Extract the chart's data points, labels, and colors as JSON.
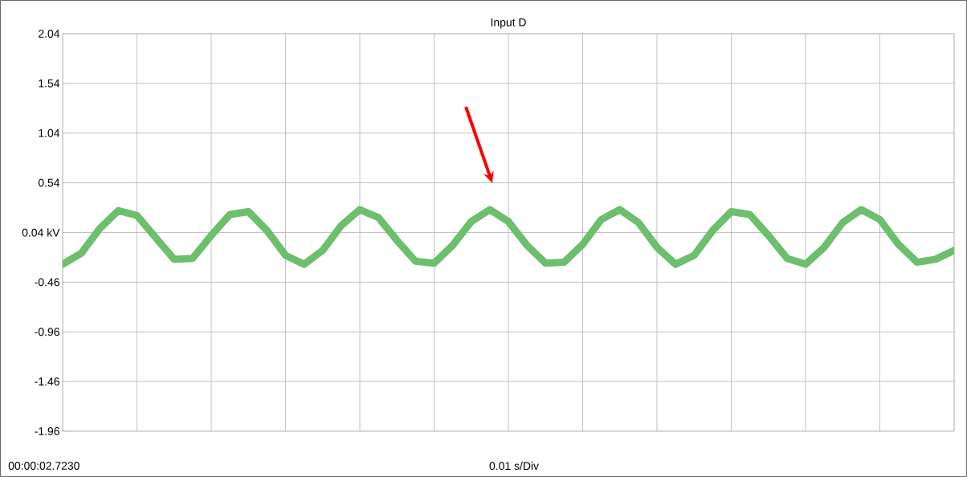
{
  "chart_data": {
    "type": "line",
    "title": "Input D",
    "annotations": [
      "00:00:02.7230",
      "0.01 s/Div"
    ],
    "categories": [
      null,
      null,
      null,
      null,
      null,
      null,
      null,
      null,
      null,
      null,
      null,
      null,
      null,
      null,
      null,
      null,
      null,
      null,
      null,
      null,
      null,
      null,
      null,
      null,
      null,
      null,
      null,
      null,
      null,
      null,
      null,
      null,
      null,
      null,
      null,
      null,
      null,
      null,
      null,
      null,
      null,
      null,
      null,
      null,
      null,
      null,
      null,
      null,
      null
    ],
    "ylim": [
      -1.96,
      2.04
    ],
    "yticks": [
      -1.96,
      -1.46,
      -0.96,
      -0.46,
      {
        "value": 0.04,
        "label": "0.04 kV"
      },
      0.54,
      1.04,
      1.54,
      2.04
    ],
    "tick_labels": "y",
    "grid": true,
    "series": [
      {
        "color": "#6cbf6c",
        "values": [
          -0.28,
          -0.17,
          0.08,
          0.26,
          0.21,
          -0.01,
          -0.23,
          -0.22,
          0.01,
          0.22,
          0.25,
          0.06,
          -0.19,
          -0.28,
          -0.14,
          0.11,
          0.27,
          0.19,
          -0.04,
          -0.25,
          -0.27,
          -0.09,
          0.15,
          0.27,
          0.15,
          -0.09,
          -0.27,
          -0.26,
          -0.08,
          0.17,
          0.27,
          0.14,
          -0.11,
          -0.28,
          -0.19,
          0.06,
          0.25,
          0.22,
          0.01,
          -0.22,
          -0.28,
          -0.11,
          0.14,
          0.27,
          0.17,
          -0.08,
          -0.26,
          -0.23,
          -0.14
        ]
      }
    ]
  }
}
